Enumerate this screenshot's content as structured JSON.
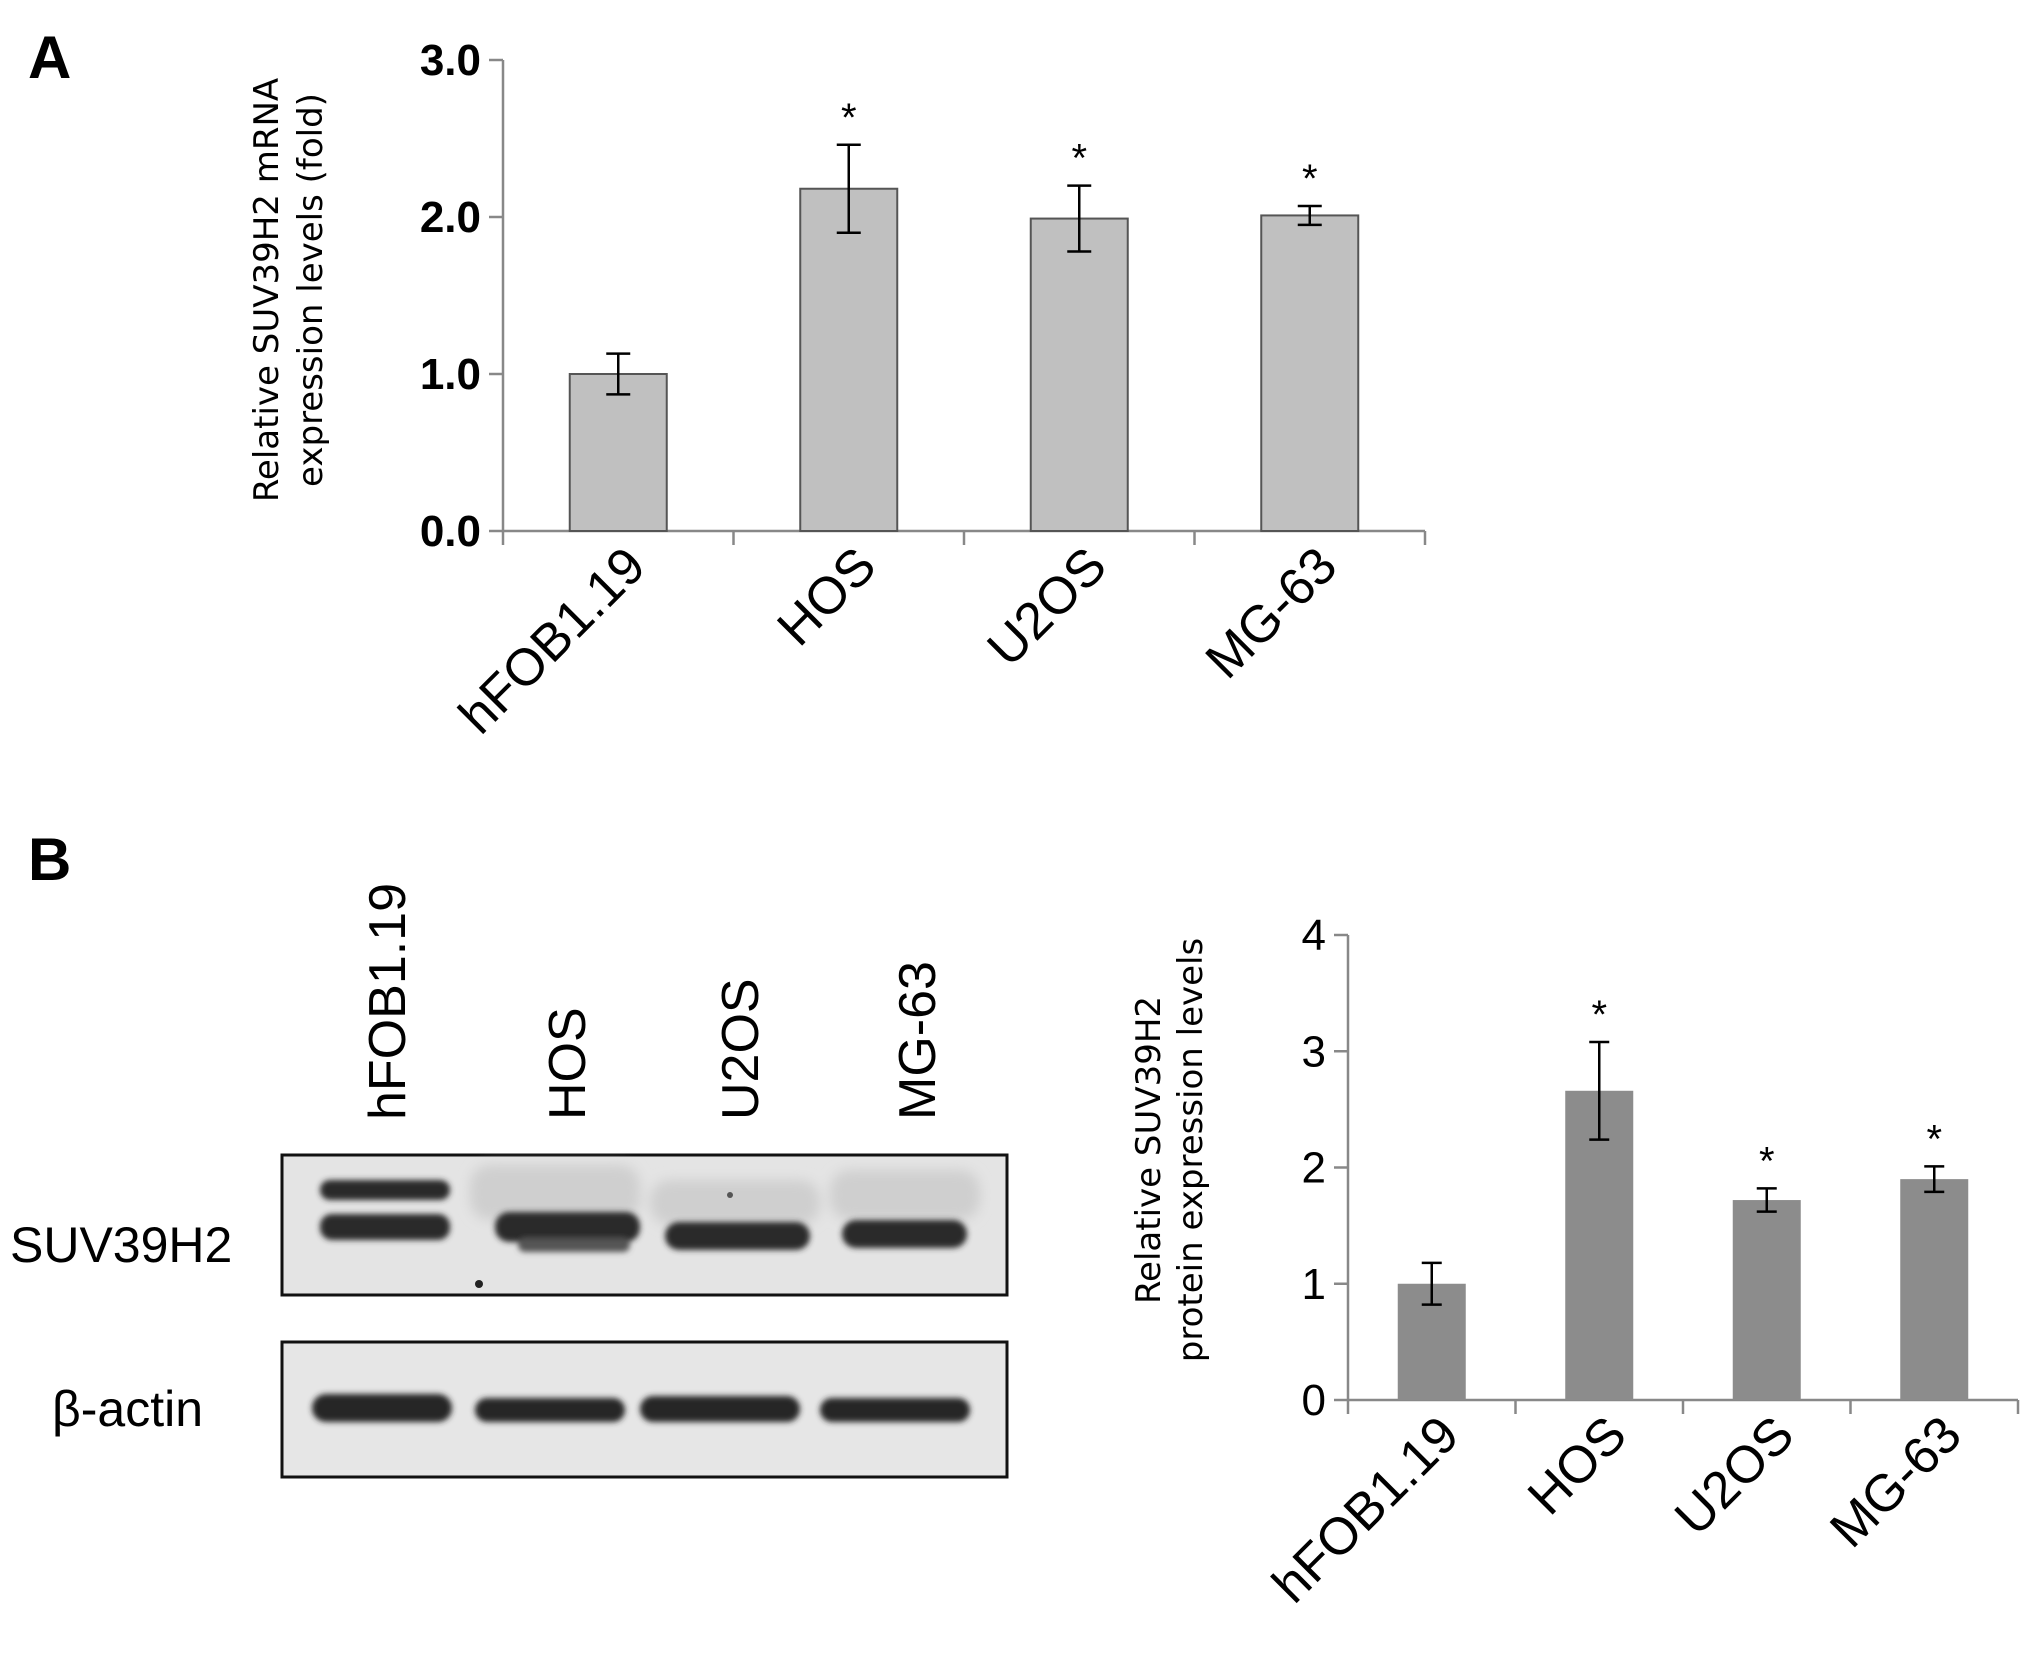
{
  "panels": {
    "a": "A",
    "b": "B"
  },
  "chart_data": [
    {
      "panel": "A",
      "type": "bar",
      "categories": [
        "hFOB1.19",
        "HOS",
        "U2OS",
        "MG-63"
      ],
      "values": [
        1.0,
        2.18,
        1.99,
        2.01
      ],
      "errors": [
        0.13,
        0.28,
        0.21,
        0.06
      ],
      "significance": [
        "",
        "*",
        "*",
        "*"
      ],
      "ylabel_lines": [
        "Relative SUV39H2 mRNA",
        "expression levels (fold)"
      ],
      "ylim": [
        0,
        3
      ],
      "yticks": [
        "0.0",
        "1.0",
        "2.0",
        "3.0"
      ],
      "bar_color": "#c0c0c0"
    },
    {
      "panel": "B",
      "type": "bar",
      "categories": [
        "hFOB1.19",
        "HOS",
        "U2OS",
        "MG-63"
      ],
      "values": [
        1.0,
        2.66,
        1.72,
        1.9
      ],
      "errors": [
        0.18,
        0.42,
        0.1,
        0.11
      ],
      "significance": [
        "",
        "*",
        "*",
        "*"
      ],
      "ylabel_lines": [
        "Relative SUV39H2",
        "protein expression levels"
      ],
      "ylim": [
        0,
        4
      ],
      "yticks": [
        "0",
        "1",
        "2",
        "3",
        "4"
      ],
      "bar_color": "#8c8c8c"
    }
  ],
  "blot": {
    "lanes": [
      "hFOB1.19",
      "HOS",
      "U2OS",
      "MG-63"
    ],
    "rows": [
      "SUV39H2",
      "β-actin"
    ]
  }
}
